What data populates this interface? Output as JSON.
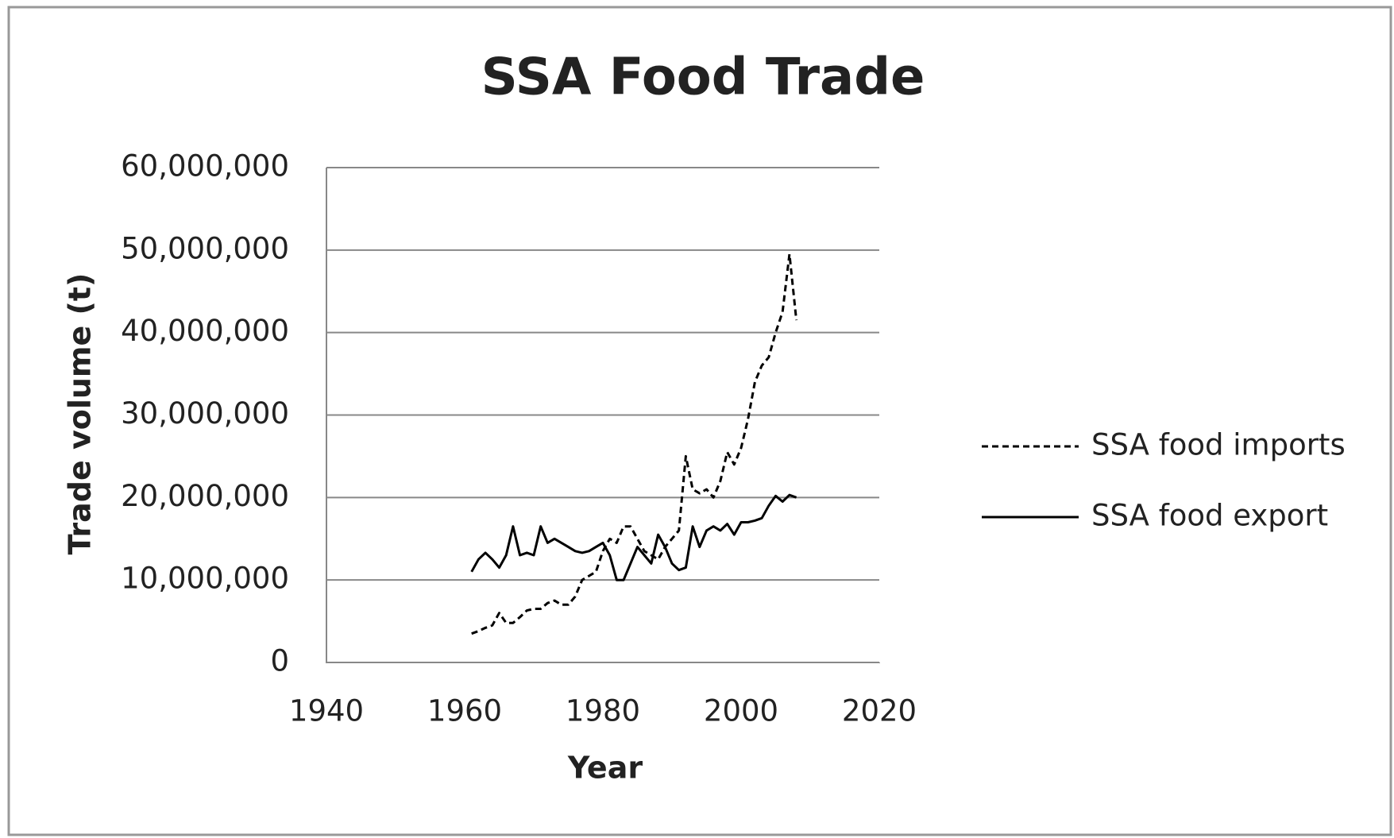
{
  "chart_data": {
    "type": "line",
    "title": "SSA Food Trade",
    "x_label": "Year",
    "y_label": "Trade volume (t)",
    "x": [
      1961,
      1962,
      1963,
      1964,
      1965,
      1966,
      1967,
      1968,
      1969,
      1970,
      1971,
      1972,
      1973,
      1974,
      1975,
      1976,
      1977,
      1978,
      1979,
      1980,
      1981,
      1982,
      1983,
      1984,
      1985,
      1986,
      1987,
      1988,
      1989,
      1990,
      1991,
      1992,
      1993,
      1994,
      1995,
      1996,
      1997,
      1998,
      1999,
      2000,
      2001,
      2002,
      2003,
      2004,
      2005,
      2006,
      2007,
      2008
    ],
    "series": [
      {
        "name": "SSA food imports",
        "color": "#000000",
        "style": "dashed",
        "values": [
          3500000,
          3800000,
          4200000,
          4500000,
          6000000,
          4800000,
          4800000,
          5500000,
          6300000,
          6500000,
          6500000,
          7200000,
          7500000,
          7000000,
          7000000,
          8000000,
          10000000,
          10500000,
          11000000,
          13500000,
          15000000,
          14500000,
          16500000,
          16500000,
          15000000,
          13500000,
          13000000,
          12500000,
          14000000,
          15000000,
          16000000,
          25000000,
          21000000,
          20500000,
          21000000,
          20000000,
          22000000,
          25500000,
          24000000,
          26000000,
          29500000,
          34000000,
          36000000,
          37000000,
          40000000,
          42500000,
          49500000,
          41500000
        ]
      },
      {
        "name": "SSA food export",
        "color": "#000000",
        "style": "solid",
        "values": [
          11000000,
          12500000,
          13300000,
          12500000,
          11500000,
          13000000,
          16500000,
          13000000,
          13300000,
          13000000,
          16500000,
          14500000,
          15000000,
          14500000,
          14000000,
          13500000,
          13300000,
          13500000,
          14000000,
          14500000,
          13000000,
          10000000,
          10000000,
          12000000,
          14000000,
          13000000,
          12000000,
          15500000,
          14000000,
          12000000,
          11200000,
          11500000,
          16500000,
          14000000,
          16000000,
          16500000,
          16000000,
          16800000,
          15500000,
          17000000,
          17000000,
          17200000,
          17500000,
          19000000,
          20200000,
          19500000,
          20300000,
          20000000
        ]
      }
    ],
    "xlim": [
      1940,
      2020
    ],
    "xticks": [
      1940,
      1960,
      1980,
      2000,
      2020
    ],
    "ylim": [
      0,
      60000000
    ],
    "yticks": [
      0,
      {
        "value": 10000000,
        "label": "10,000,000"
      },
      {
        "value": 20000000,
        "label": "20,000,000"
      },
      {
        "value": 30000000,
        "label": "30,000,000"
      },
      {
        "value": 40000000,
        "label": "40,000,000"
      },
      {
        "value": 50000000,
        "label": "50,000,000"
      },
      {
        "value": 60000000,
        "label": "60,000,000"
      }
    ],
    "grid": true,
    "legend": "right"
  }
}
